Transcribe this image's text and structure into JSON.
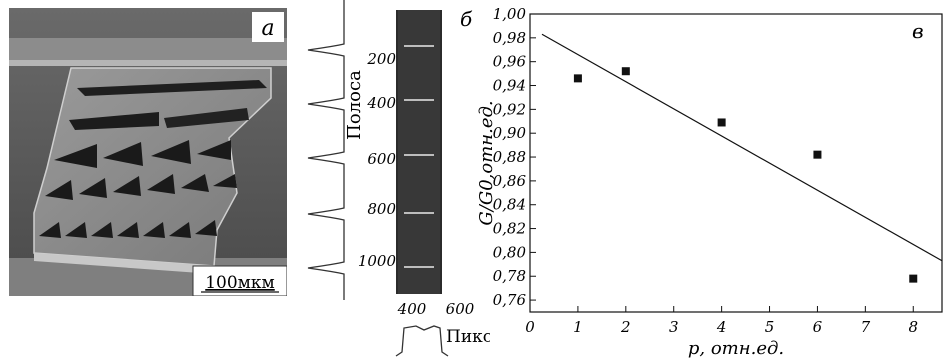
{
  "panel_a": {
    "letter": "а",
    "scale_bar_label": "100мкм"
  },
  "panel_b": {
    "letter": "б",
    "y_label": "Полоса",
    "x_label": "Пиксель",
    "y_ticks": [
      "200",
      "400",
      "600",
      "800",
      "1000"
    ],
    "x_ticks": [
      "400",
      "600"
    ]
  },
  "chart_data": {
    "type": "scatter",
    "panel_letter": "в",
    "xlabel": "p, отн.ед.",
    "ylabel": "G/G0,отн.ед.",
    "xlim": [
      0,
      8.6
    ],
    "ylim": [
      0.75,
      1.0
    ],
    "x_ticks": [
      0,
      1,
      2,
      3,
      4,
      5,
      6,
      7,
      8
    ],
    "y_ticks": [
      "0,76",
      "0,78",
      "0,80",
      "0,82",
      "0,84",
      "0,86",
      "0,88",
      "0,90",
      "0,92",
      "0,94",
      "0,96",
      "0,98",
      "1,00"
    ],
    "points": [
      {
        "x": 1,
        "y": 0.946
      },
      {
        "x": 2,
        "y": 0.952
      },
      {
        "x": 4,
        "y": 0.909
      },
      {
        "x": 6,
        "y": 0.882
      },
      {
        "x": 8,
        "y": 0.778
      }
    ],
    "fit_line": {
      "x": [
        0.25,
        8.6
      ],
      "y": [
        0.983,
        0.793
      ]
    }
  }
}
